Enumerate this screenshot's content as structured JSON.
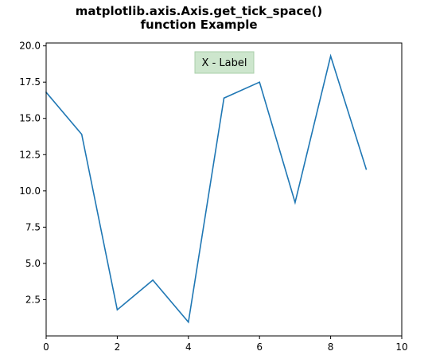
{
  "chart_data": {
    "type": "line",
    "title": "matplotlib.axis.Axis.get_tick_space()\nfunction Example",
    "title_lines": [
      "matplotlib.axis.Axis.get_tick_space()",
      "function Example"
    ],
    "xlabel": "",
    "ylabel": "",
    "x": [
      0,
      1,
      2,
      3,
      4,
      5,
      6,
      7,
      8,
      9
    ],
    "series": [
      {
        "values": [
          16.8,
          13.9,
          1.8,
          3.85,
          0.95,
          16.4,
          17.5,
          9.2,
          19.3,
          11.5
        ],
        "color": "#1f77b4"
      }
    ],
    "xlim": [
      0,
      10
    ],
    "ylim": [
      0.0,
      20.2
    ],
    "xticks": [
      0,
      2,
      4,
      6,
      8,
      10
    ],
    "xtick_labels": [
      "0",
      "2",
      "4",
      "6",
      "8",
      "10"
    ],
    "yticks": [
      2.5,
      5.0,
      7.5,
      10.0,
      12.5,
      15.0,
      17.5,
      20.0
    ],
    "ytick_labels": [
      "2.5",
      "5.0",
      "7.5",
      "10.0",
      "12.5",
      "15.0",
      "17.5",
      "20.0"
    ],
    "grid": false,
    "annotation": {
      "text": "X - Label",
      "box_face_color": "#cde6cd",
      "box_edge_color": "#a9cfa9"
    }
  }
}
